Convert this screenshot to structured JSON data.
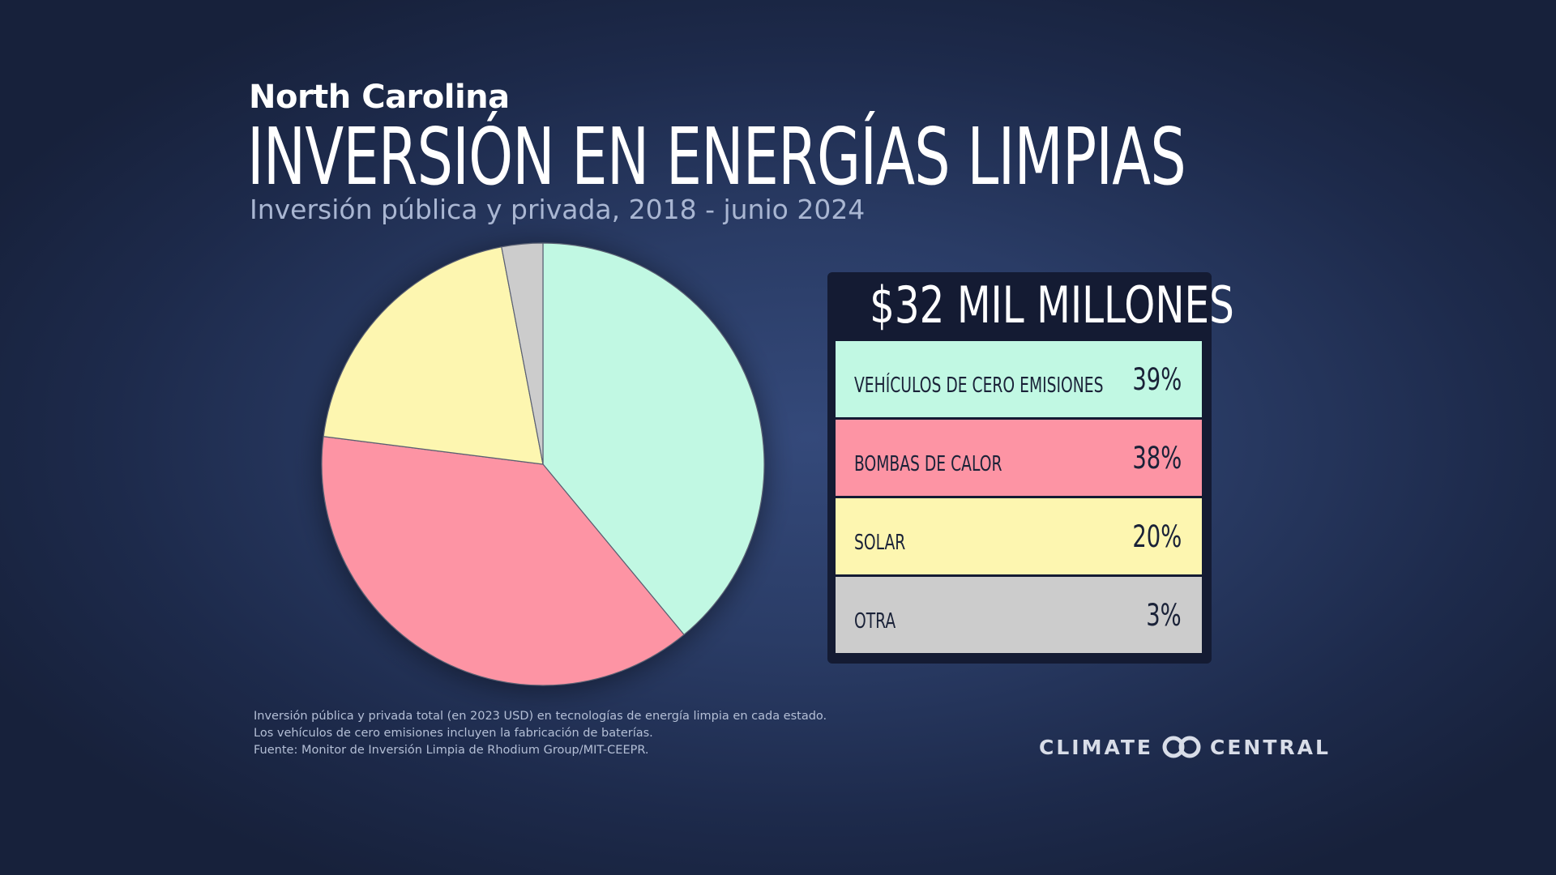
{
  "header": {
    "state": "North Carolina",
    "title": "INVERSIÓN EN ENERGÍAS LIMPIAS",
    "subtitle": "Inversión pública y privada, 2018 - junio 2024"
  },
  "summary": {
    "total": "$32 MIL MILLONES"
  },
  "chart_data": {
    "type": "pie",
    "title": "INVERSIÓN EN ENERGÍAS LIMPIAS",
    "subtitle": "Inversión pública y privada, 2018 - junio 2024",
    "categories": [
      "VEHÍCULOS DE CERO EMISIONES",
      "BOMBAS DE CALOR",
      "SOLAR",
      "OTRA"
    ],
    "values": [
      39,
      38,
      20,
      3
    ],
    "value_labels": [
      "39%",
      "38%",
      "20%",
      "3%"
    ],
    "colors": [
      "#c1f8e3",
      "#fd94a4",
      "#fdf6b0",
      "#cccccc"
    ],
    "start_angle_deg": 0,
    "direction": "clockwise",
    "legend_placement": "right"
  },
  "notes": [
    "Inversión pública y privada total (en 2023 USD) en tecnologías de energía limpia en cada estado.",
    "Los vehículos de cero emisiones incluyen la fabricación de baterías.",
    "Fuente: Monitor de Inversión Limpia de Rhodium Group/MIT-CEEPR."
  ],
  "logo": {
    "left_word": "CLIMATE",
    "right_word": "CENTRAL",
    "icon": "climate-central-logo-icon"
  }
}
